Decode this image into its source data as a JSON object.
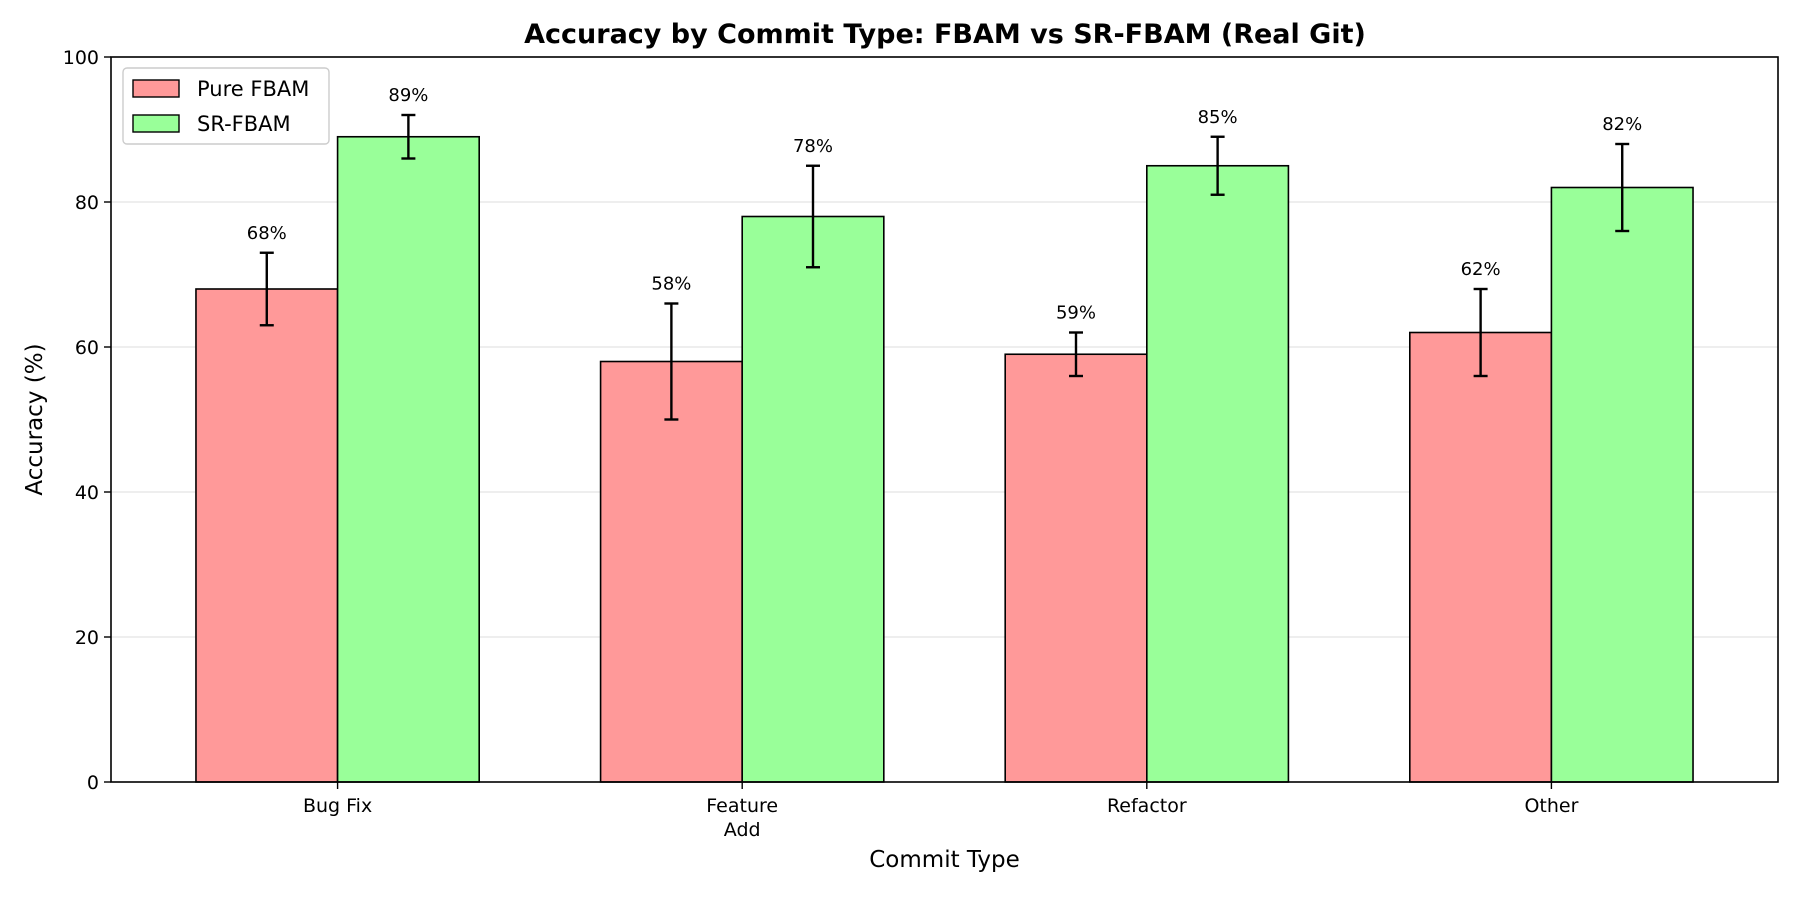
{
  "chart_data": {
    "type": "bar",
    "title": "Accuracy by Commit Type: FBAM vs SR-FBAM (Real Git)",
    "xlabel": "Commit Type",
    "ylabel": "Accuracy (%)",
    "categories": [
      [
        "Bug Fix"
      ],
      [
        "Feature",
        "Add"
      ],
      [
        "Refactor"
      ],
      [
        "Other"
      ]
    ],
    "series": [
      {
        "name": "Pure FBAM",
        "color": "#ff9999",
        "values": [
          68,
          58,
          59,
          62
        ],
        "errors": [
          5,
          8,
          3,
          6
        ],
        "value_labels": [
          "68%",
          "58%",
          "59%",
          "62%"
        ]
      },
      {
        "name": "SR-FBAM",
        "color": "#99ff99",
        "values": [
          89,
          78,
          85,
          82
        ],
        "errors": [
          3,
          7,
          4,
          6
        ],
        "value_labels": [
          "89%",
          "78%",
          "85%",
          "82%"
        ]
      }
    ],
    "ylim": [
      0,
      100
    ],
    "yticks": [
      0,
      20,
      40,
      60,
      80,
      100
    ],
    "ytick_labels": [
      "0",
      "20",
      "40",
      "60",
      "80",
      "100"
    ],
    "grid": "horizontal",
    "legend": "top-left"
  }
}
